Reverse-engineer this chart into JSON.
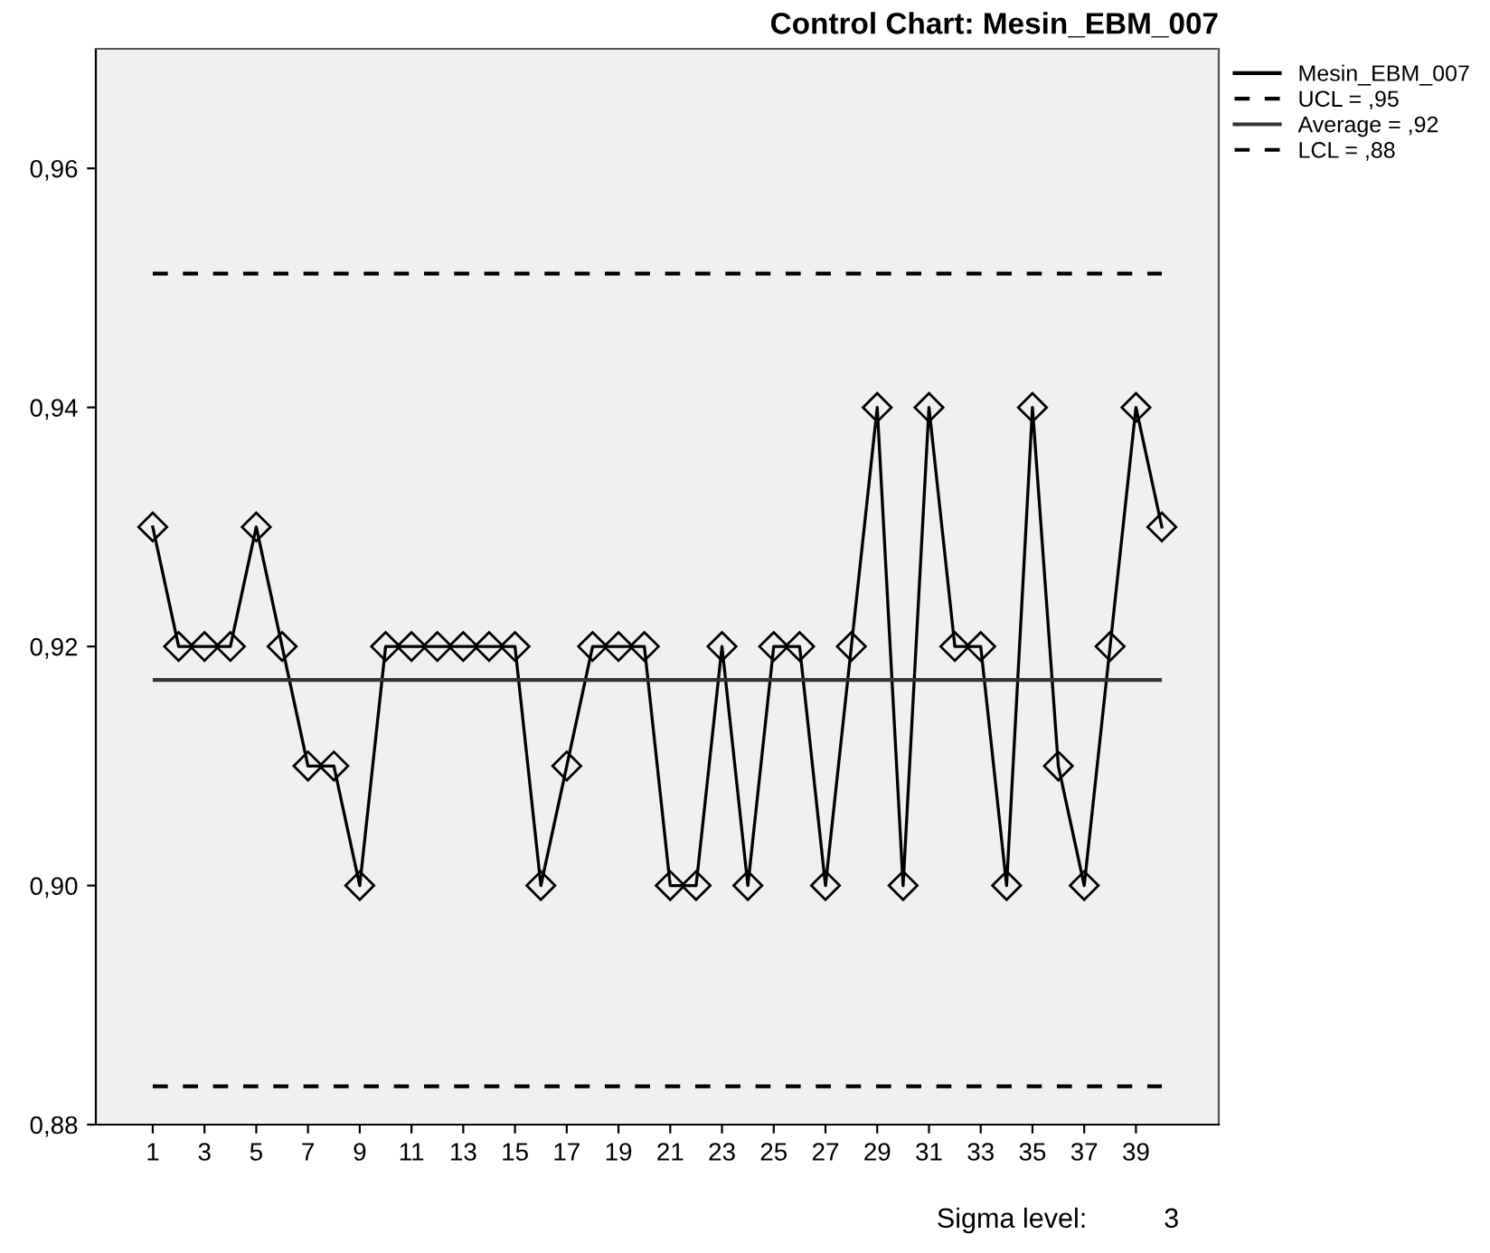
{
  "chart_data": {
    "type": "line",
    "title": "Control Chart: Mesin_EBM_007",
    "x": [
      1,
      2,
      3,
      4,
      5,
      6,
      7,
      8,
      9,
      10,
      11,
      12,
      13,
      14,
      15,
      16,
      17,
      18,
      19,
      20,
      21,
      22,
      23,
      24,
      25,
      26,
      27,
      28,
      29,
      30,
      31,
      32,
      33,
      34,
      35,
      36,
      37,
      38,
      39,
      40
    ],
    "series": [
      {
        "name": "Mesin_EBM_007",
        "color": "#000000",
        "values": [
          0.93,
          0.92,
          0.92,
          0.92,
          0.93,
          0.92,
          0.91,
          0.91,
          0.9,
          0.92,
          0.92,
          0.92,
          0.92,
          0.92,
          0.92,
          0.9,
          0.91,
          0.92,
          0.92,
          0.92,
          0.9,
          0.9,
          0.92,
          0.9,
          0.92,
          0.92,
          0.9,
          0.92,
          0.94,
          0.9,
          0.94,
          0.92,
          0.92,
          0.9,
          0.94,
          0.91,
          0.9,
          0.92,
          0.94,
          0.93
        ]
      }
    ],
    "ref_lines": [
      {
        "axis": "y",
        "value": 0.9512,
        "label": "UCL = ,95",
        "color": "#000000",
        "line_style": "dashed"
      },
      {
        "axis": "y",
        "value": 0.9172,
        "label": "Average = ,92",
        "color": "#333333",
        "line_style": "solid"
      },
      {
        "axis": "y",
        "value": 0.8832,
        "label": "LCL = ,88",
        "color": "#000000",
        "line_style": "dashed"
      }
    ],
    "xlim": [
      -1.2,
      42.2
    ],
    "xticks": [
      1,
      3,
      5,
      7,
      9,
      11,
      13,
      15,
      17,
      19,
      21,
      23,
      25,
      27,
      29,
      31,
      33,
      35,
      37,
      39
    ],
    "ylim": [
      0.88,
      0.97
    ],
    "yticks": [
      {
        "value": 0.88,
        "label": "0,88"
      },
      {
        "value": 0.9,
        "label": "0,90"
      },
      {
        "value": 0.92,
        "label": "0,92"
      },
      {
        "value": 0.94,
        "label": "0,94"
      },
      {
        "value": 0.96,
        "label": "0,96"
      }
    ],
    "annotations": [
      "Sigma level:          3"
    ],
    "marker": "diamond",
    "line_style": "solid",
    "grid": false,
    "legend": "top right"
  }
}
